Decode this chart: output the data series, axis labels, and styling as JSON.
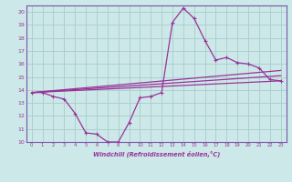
{
  "xlabel": "Windchill (Refroidissement éolien,°C)",
  "ylabel": "",
  "bg_color": "#cce8e8",
  "line_color": "#993399",
  "grid_color": "#aacccc",
  "spine_color": "#7755aa",
  "xlim": [
    -0.5,
    23.5
  ],
  "ylim": [
    10,
    20.5
  ],
  "xticks": [
    0,
    1,
    2,
    3,
    4,
    5,
    6,
    7,
    8,
    9,
    10,
    11,
    12,
    13,
    14,
    15,
    16,
    17,
    18,
    19,
    20,
    21,
    22,
    23
  ],
  "yticks": [
    10,
    11,
    12,
    13,
    14,
    15,
    16,
    17,
    18,
    19,
    20
  ],
  "main_x": [
    0,
    1,
    2,
    3,
    4,
    5,
    6,
    7,
    8,
    9,
    10,
    11,
    12,
    13,
    14,
    15,
    16,
    17,
    18,
    19,
    20,
    21,
    22,
    23
  ],
  "main_y": [
    13.8,
    13.8,
    13.5,
    13.3,
    12.2,
    10.7,
    10.6,
    10.0,
    10.0,
    11.5,
    13.4,
    13.5,
    13.8,
    19.2,
    20.3,
    19.5,
    17.8,
    16.3,
    16.5,
    16.1,
    16.0,
    15.7,
    14.8,
    14.7
  ],
  "line2_x": [
    0,
    23
  ],
  "line2_y": [
    13.8,
    14.7
  ],
  "line3_x": [
    0,
    23
  ],
  "line3_y": [
    13.8,
    15.1
  ],
  "line4_x": [
    0,
    23
  ],
  "line4_y": [
    13.8,
    15.5
  ]
}
